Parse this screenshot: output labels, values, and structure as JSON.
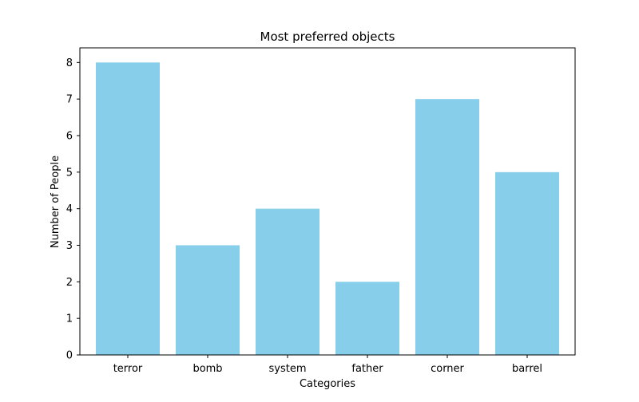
{
  "chart_data": {
    "type": "bar",
    "title": "Most preferred objects",
    "xlabel": "Categories",
    "ylabel": "Number of People",
    "categories": [
      "terror",
      "bomb",
      "system",
      "father",
      "corner",
      "barrel"
    ],
    "values": [
      8,
      3,
      4,
      2,
      7,
      5
    ],
    "ylim": [
      0,
      8.4
    ],
    "yticks": [
      "0",
      "1",
      "2",
      "3",
      "4",
      "5",
      "6",
      "7",
      "8"
    ],
    "bar_color": "#87CEEB",
    "grid": false,
    "legend": "none"
  }
}
